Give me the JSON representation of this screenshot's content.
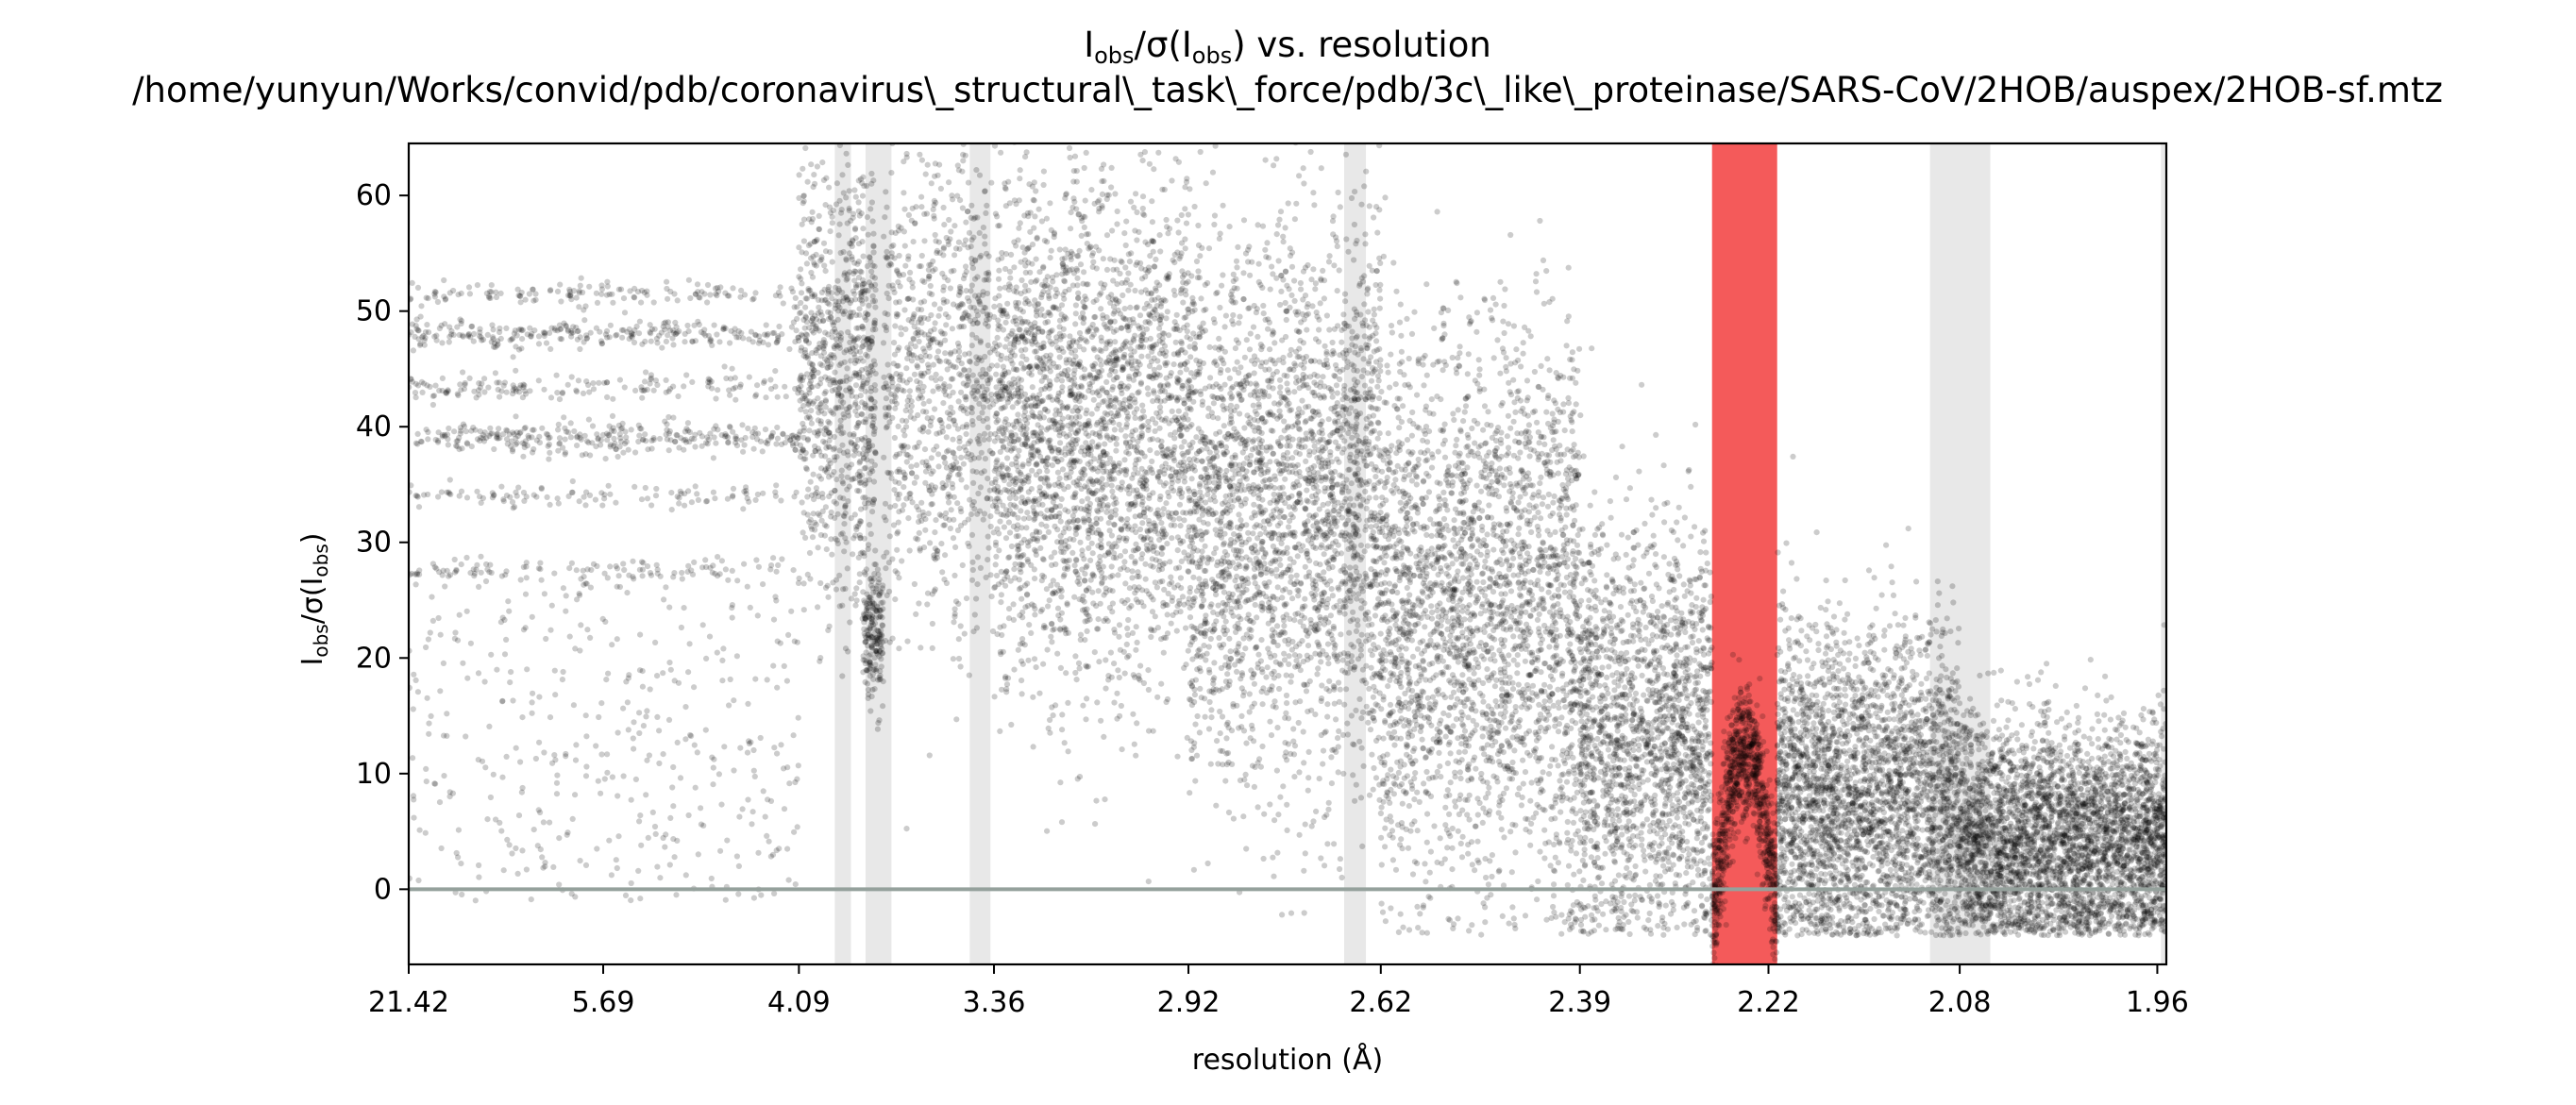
{
  "chart_data": {
    "type": "scatter",
    "title_main": "I",
    "title_sub_1": "obs",
    "title_mid": "/σ(I",
    "title_sub_2": "obs",
    "title_end": ") vs. resolution",
    "subtitle": "/home/yunyun/Works/convid/pdb/coronavirus\\_structural\\_task\\_force/pdb/3c\\_like\\_proteinase/SARS-CoV/2HOB/auspex/2HOB-sf.mtz",
    "xlabel": "resolution (Å)",
    "ylabel_main": "I",
    "ylabel_sub_1": "obs",
    "ylabel_mid": "/σ(I",
    "ylabel_sub_2": "obs",
    "ylabel_end": ")",
    "x_axis_scale": "1/d² (reciprocal squared resolution)",
    "x_ticks": [
      "21.42",
      "5.69",
      "4.09",
      "3.36",
      "2.92",
      "2.62",
      "2.39",
      "2.22",
      "2.08",
      "1.96"
    ],
    "x_range_resolution": [
      21.42,
      1.955
    ],
    "y_ticks": [
      "0",
      "10",
      "20",
      "30",
      "40",
      "50",
      "60"
    ],
    "ylim": [
      -6.5,
      64.5
    ],
    "zero_line": 0,
    "point_color": "#000000",
    "point_opacity": 0.2,
    "flagged_band_color": "#f45a5a",
    "ice_ring_color": "#e8e8e8",
    "ice_ring_bands_resolution": [
      [
        3.92,
        3.85
      ],
      [
        3.79,
        3.69
      ],
      [
        3.43,
        3.37
      ],
      [
        2.67,
        2.64
      ],
      [
        2.1,
        2.06
      ],
      [
        1.958,
        1.955
      ]
    ],
    "flagged_bands_resolution": [
      [
        2.267,
        2.213
      ]
    ],
    "density_segments": [
      {
        "d_range": [
          21.42,
          4.09
        ],
        "n": 420,
        "kind": "uniform",
        "y_range": [
          -1,
          29
        ]
      },
      {
        "d_range": [
          21.42,
          4.09
        ],
        "n": 300,
        "kind": "band",
        "y": 39,
        "spread": 0.7
      },
      {
        "d_range": [
          21.42,
          4.09
        ],
        "n": 260,
        "kind": "band",
        "y": 48,
        "spread": 0.6
      },
      {
        "d_range": [
          21.42,
          4.09
        ],
        "n": 160,
        "kind": "band",
        "y": 43.5,
        "spread": 0.6
      },
      {
        "d_range": [
          21.42,
          4.09
        ],
        "n": 140,
        "kind": "band",
        "y": 51.5,
        "spread": 0.5
      },
      {
        "d_range": [
          21.42,
          4.09
        ],
        "n": 110,
        "kind": "band",
        "y": 34,
        "spread": 0.5
      },
      {
        "d_range": [
          21.42,
          4.09
        ],
        "n": 90,
        "kind": "band",
        "y": 27.5,
        "spread": 0.5
      },
      {
        "d_range": [
          4.09,
          3.75
        ],
        "n": 900,
        "kind": "normal",
        "y": 45,
        "spread": 9
      },
      {
        "d_range": [
          3.8,
          3.72
        ],
        "n": 200,
        "kind": "normal",
        "y": 22,
        "spread": 3
      },
      {
        "d_range": [
          3.72,
          3.36
        ],
        "n": 900,
        "kind": "normal",
        "y": 44,
        "spread": 10
      },
      {
        "d_range": [
          3.36,
          2.92
        ],
        "n": 2600,
        "kind": "normal",
        "y": 40,
        "spread": 11
      },
      {
        "d_range": [
          2.92,
          2.62
        ],
        "n": 2600,
        "kind": "normal",
        "y": 33,
        "spread": 12
      },
      {
        "d_range": [
          2.62,
          2.39
        ],
        "n": 2600,
        "kind": "normal",
        "y": 24,
        "spread": 12
      },
      {
        "d_range": [
          2.39,
          2.267
        ],
        "n": 1800,
        "kind": "normal",
        "y": 13,
        "spread": 9
      },
      {
        "d_range": [
          2.267,
          2.213
        ],
        "n": 900,
        "kind": "arch",
        "y": 12,
        "spread": 3
      },
      {
        "d_range": [
          2.213,
          2.08
        ],
        "n": 3000,
        "kind": "normal",
        "y": 8,
        "spread": 7
      },
      {
        "d_range": [
          2.08,
          1.955
        ],
        "n": 3600,
        "kind": "normal",
        "y": 4,
        "spread": 5
      }
    ]
  }
}
